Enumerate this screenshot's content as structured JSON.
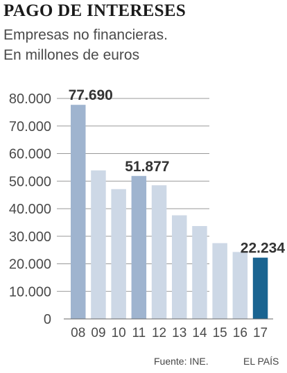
{
  "header": {
    "title": "PAGO DE INTERESES",
    "subtitle_line1": "Empresas no financieras.",
    "subtitle_line2": "En millones de euros"
  },
  "footer": {
    "source": "Fuente: INE.",
    "brand": "EL PAÍS"
  },
  "colors": {
    "bar_light": "#cdd8e6",
    "bar_medium": "#9fb4cf",
    "bar_dark": "#1a6491",
    "grid": "#999999",
    "axis": "#666666",
    "tick_text": "#4a4a4a",
    "data_label": "#333333"
  },
  "chart_data": {
    "type": "bar",
    "title": "PAGO DE INTERESES",
    "subtitle": "Empresas no financieras. En millones de euros",
    "categories": [
      "08",
      "09",
      "10",
      "11",
      "12",
      "13",
      "14",
      "15",
      "16",
      "17"
    ],
    "values": [
      77690,
      53900,
      47100,
      51877,
      48500,
      37600,
      33700,
      27500,
      24300,
      22234
    ],
    "highlight": [
      "medium",
      "light",
      "light",
      "medium",
      "light",
      "light",
      "light",
      "light",
      "light",
      "dark"
    ],
    "data_labels": [
      {
        "category": "08",
        "text": "77.690"
      },
      {
        "category": "11",
        "text": "51.877"
      },
      {
        "category": "17",
        "text": "22.234"
      }
    ],
    "y_ticks": [
      0,
      10000,
      20000,
      30000,
      40000,
      50000,
      60000,
      70000,
      80000
    ],
    "y_tick_labels": [
      "0",
      "10.000",
      "20.000",
      "30.000",
      "40.000",
      "50.000",
      "60.000",
      "70.000",
      "80.000"
    ],
    "ylim": [
      0,
      80000
    ],
    "xlabel": "",
    "ylabel": "",
    "grid": true
  }
}
